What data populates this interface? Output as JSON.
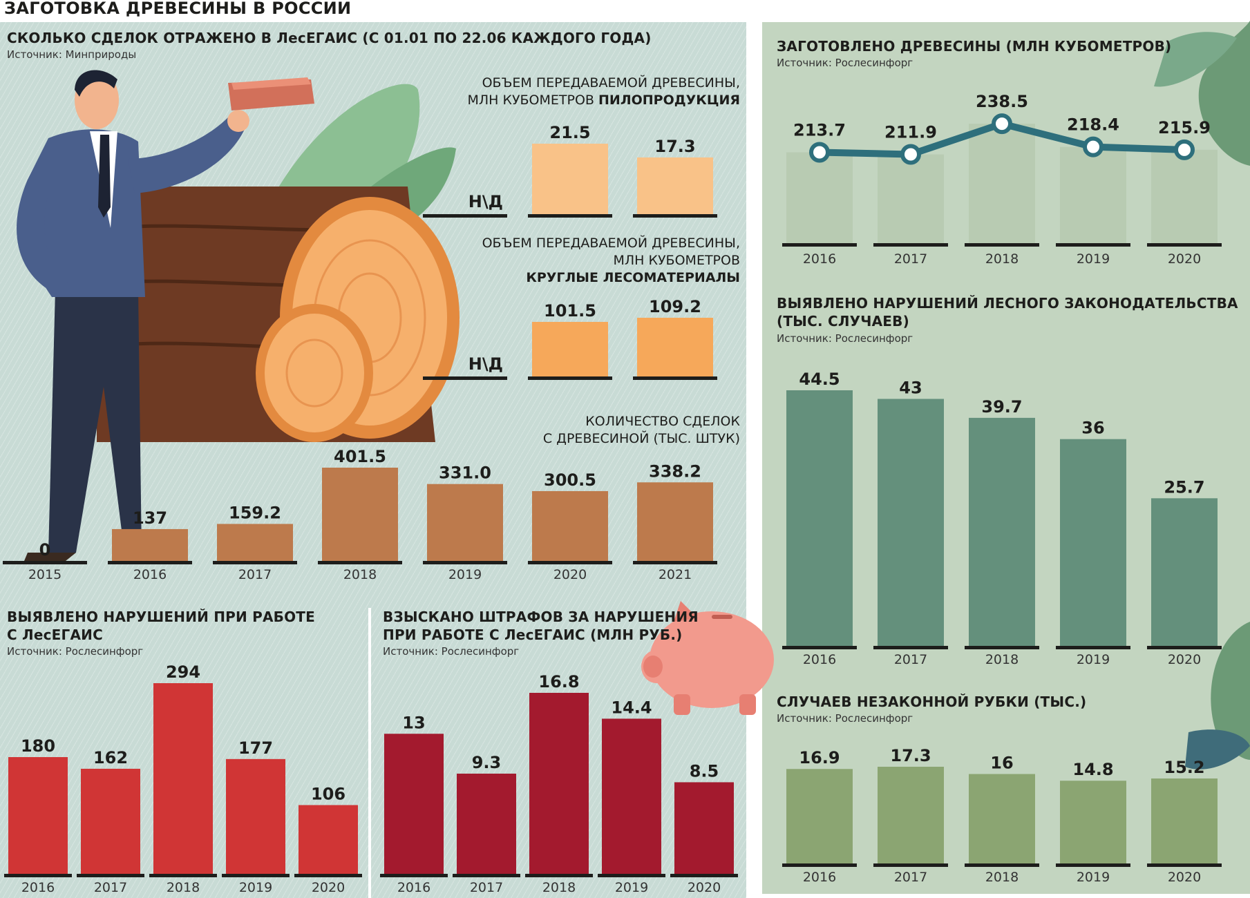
{
  "page": {
    "title": "ЗАГОТОВКА ДРЕВЕСИНЫ В РОССИИ"
  },
  "panels": {
    "lesegais": {
      "title": "СКОЛЬКО СДЕЛОК ОТРАЖЕНО В ЛесЕГАИС (С 01.01 ПО 22.06 КАЖДОГО ГОДА)",
      "source": "Источник: Минприроды",
      "lumber_sub1": "ОБЪЕМ ПЕРЕДАВАЕМОЙ ДРЕВЕСИНЫ,",
      "lumber_sub2a": "МЛН КУБОМЕТРОВ ",
      "lumber_sub2b": "ПИЛОПРОДУКЦИЯ",
      "round_sub1": "ОБЪЕМ ПЕРЕДАВАЕМОЙ ДРЕВЕСИНЫ,",
      "round_sub2": "МЛН КУБОМЕТРОВ",
      "round_sub3": "КРУГЛЫЕ ЛЕСОМАТЕРИАЛЫ",
      "deals_sub1": "КОЛИЧЕСТВО СДЕЛОК",
      "deals_sub2": "С ДРЕВЕСИНОЙ (ТЫС. ШТУК)",
      "na_label": "Н\\Д"
    },
    "harvest": {
      "title": "ЗАГОТОВЛЕНО ДРЕВЕСИНЫ (МЛН КУБОМЕТРОВ)",
      "source": "Источник: Рослесинфорг"
    },
    "violations": {
      "title1": "ВЫЯВЛЕНО НАРУШЕНИЙ ЛЕСНОГО ЗАКОНОДАТЕЛЬСТВА",
      "title2": "(ТЫС. СЛУЧАЕВ)",
      "source": "Источник: Рослесинфорг"
    },
    "illegal": {
      "title": "СЛУЧАЕВ НЕЗАКОННОЙ РУБКИ (ТЫС.)",
      "source": "Источник: Рослесинфорг"
    },
    "lesegais_violations": {
      "title1": "ВЫЯВЛЕНО НАРУШЕНИЙ ПРИ РАБОТЕ",
      "title2": "С ЛесЕГАИС",
      "source": "Источник: Рослесинфорг"
    },
    "fines": {
      "title1": "ВЗЫСКАНО ШТРАФОВ ЗА НАРУШЕНИЯ",
      "title2": "ПРИ РАБОТЕ С ЛесЕГАИС (МЛН РУБ.)",
      "source": "Источник: Рослесинфорг"
    }
  },
  "colors": {
    "panel_bg": "#c8dbd5",
    "right_bg": "#c3d5c0",
    "lumber": "#f9c288",
    "roundwood": "#f6a85a",
    "deals": "#bd7a4c",
    "harvest_line": "#2e6f7c",
    "violations": "#64907c",
    "illegal": "#8ba572",
    "lesegais_violations": "#d03535",
    "fines": "#a31a2e"
  },
  "chart_data": [
    {
      "id": "lumber",
      "type": "bar",
      "title": "ОБЪЕМ ПЕРЕДАВАЕМОЙ ДРЕВЕСИНЫ, МЛН КУБОМЕТРОВ ПИЛОПРОДУКЦИЯ",
      "categories": [
        "2019",
        "2020",
        "2021"
      ],
      "values": [
        "Н\\Д",
        21.5,
        17.3
      ],
      "labels": [
        "Н\\Д",
        "21.5",
        "17.3"
      ]
    },
    {
      "id": "roundwood",
      "type": "bar",
      "title": "ОБЪЕМ ПЕРЕДАВАЕМОЙ ДРЕВЕСИНЫ, МЛН КУБОМЕТРОВ КРУГЛЫЕ ЛЕСОМАТЕРИАЛЫ",
      "categories": [
        "2019",
        "2020",
        "2021"
      ],
      "values": [
        "Н\\Д",
        101.5,
        109.2
      ],
      "labels": [
        "Н\\Д",
        "101.5",
        "109.2"
      ]
    },
    {
      "id": "deals",
      "type": "bar",
      "title": "КОЛИЧЕСТВО СДЕЛОК С ДРЕВЕСИНОЙ (ТЫС. ШТУК)",
      "categories": [
        "2015",
        "2016",
        "2017",
        "2018",
        "2019",
        "2020",
        "2021"
      ],
      "values": [
        0,
        137,
        159.2,
        401.5,
        331.0,
        300.5,
        338.2
      ],
      "labels": [
        "0",
        "137",
        "159.2",
        "401.5",
        "331.0",
        "300.5",
        "338.2"
      ]
    },
    {
      "id": "harvest",
      "type": "line",
      "title": "ЗАГОТОВЛЕНО ДРЕВЕСИНЫ (МЛН КУБОМЕТРОВ)",
      "categories": [
        "2016",
        "2017",
        "2018",
        "2019",
        "2020"
      ],
      "values": [
        213.7,
        211.9,
        238.5,
        218.4,
        215.9
      ],
      "labels": [
        "213.7",
        "211.9",
        "238.5",
        "218.4",
        "215.9"
      ]
    },
    {
      "id": "violations",
      "type": "bar",
      "title": "ВЫЯВЛЕНО НАРУШЕНИЙ ЛЕСНОГО ЗАКОНОДАТЕЛЬСТВА (ТЫС. СЛУЧАЕВ)",
      "categories": [
        "2016",
        "2017",
        "2018",
        "2019",
        "2020"
      ],
      "values": [
        44.5,
        43,
        39.7,
        36,
        25.7
      ],
      "labels": [
        "44.5",
        "43",
        "39.7",
        "36",
        "25.7"
      ]
    },
    {
      "id": "illegal",
      "type": "bar",
      "title": "СЛУЧАЕВ НЕЗАКОННОЙ РУБКИ (ТЫС.)",
      "categories": [
        "2016",
        "2017",
        "2018",
        "2019",
        "2020"
      ],
      "values": [
        16.9,
        17.3,
        16,
        14.8,
        15.2
      ],
      "labels": [
        "16.9",
        "17.3",
        "16",
        "14.8",
        "15.2"
      ]
    },
    {
      "id": "lesegais_violations",
      "type": "bar",
      "title": "ВЫЯВЛЕНО НАРУШЕНИЙ ПРИ РАБОТЕ С ЛесЕГАИС",
      "categories": [
        "2016",
        "2017",
        "2018",
        "2019",
        "2020"
      ],
      "values": [
        180,
        162,
        294,
        177,
        106
      ],
      "labels": [
        "180",
        "162",
        "294",
        "177",
        "106"
      ]
    },
    {
      "id": "fines",
      "type": "bar",
      "title": "ВЗЫСКАНО ШТРАФОВ ЗА НАРУШЕНИЯ ПРИ РАБОТЕ С ЛесЕГАИС (МЛН РУБ.)",
      "categories": [
        "2016",
        "2017",
        "2018",
        "2019",
        "2020"
      ],
      "values": [
        13,
        9.3,
        16.8,
        14.4,
        8.5
      ],
      "labels": [
        "13",
        "9.3",
        "16.8",
        "14.4",
        "8.5"
      ]
    }
  ]
}
